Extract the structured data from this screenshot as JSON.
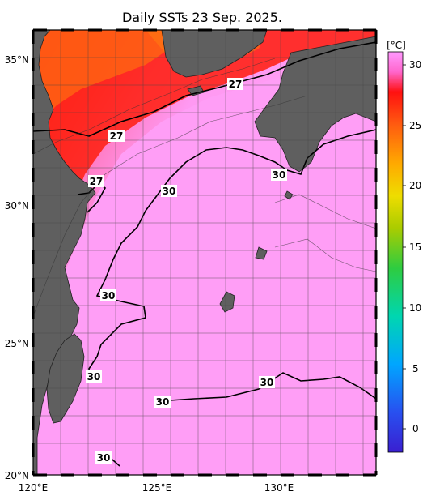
{
  "title": "Daily SSTs 23 Sep. 2025.",
  "map": {
    "lat_ticks": [
      "35°N",
      "30°N",
      "25°N",
      "20°N"
    ],
    "lon_ticks": [
      "120°E",
      "125°E",
      "130°E"
    ],
    "contour_labels": [
      "27",
      "27",
      "27",
      "30",
      "30",
      "30",
      "30",
      "30",
      "30",
      "30"
    ]
  },
  "colorbar": {
    "unit": "[°C]",
    "ticks": [
      "30",
      "25",
      "20",
      "15",
      "10",
      "5",
      "0"
    ],
    "colors": [
      "#ff99ff",
      "#ff3333",
      "#ff9900",
      "#cccc00",
      "#33cc33",
      "#00aaff",
      "#3322cc"
    ]
  },
  "colors": {
    "warm_pink": "#ff9cf6",
    "red": "#ff2a1e",
    "land": "#5f5f5f",
    "grid": "#444444"
  }
}
